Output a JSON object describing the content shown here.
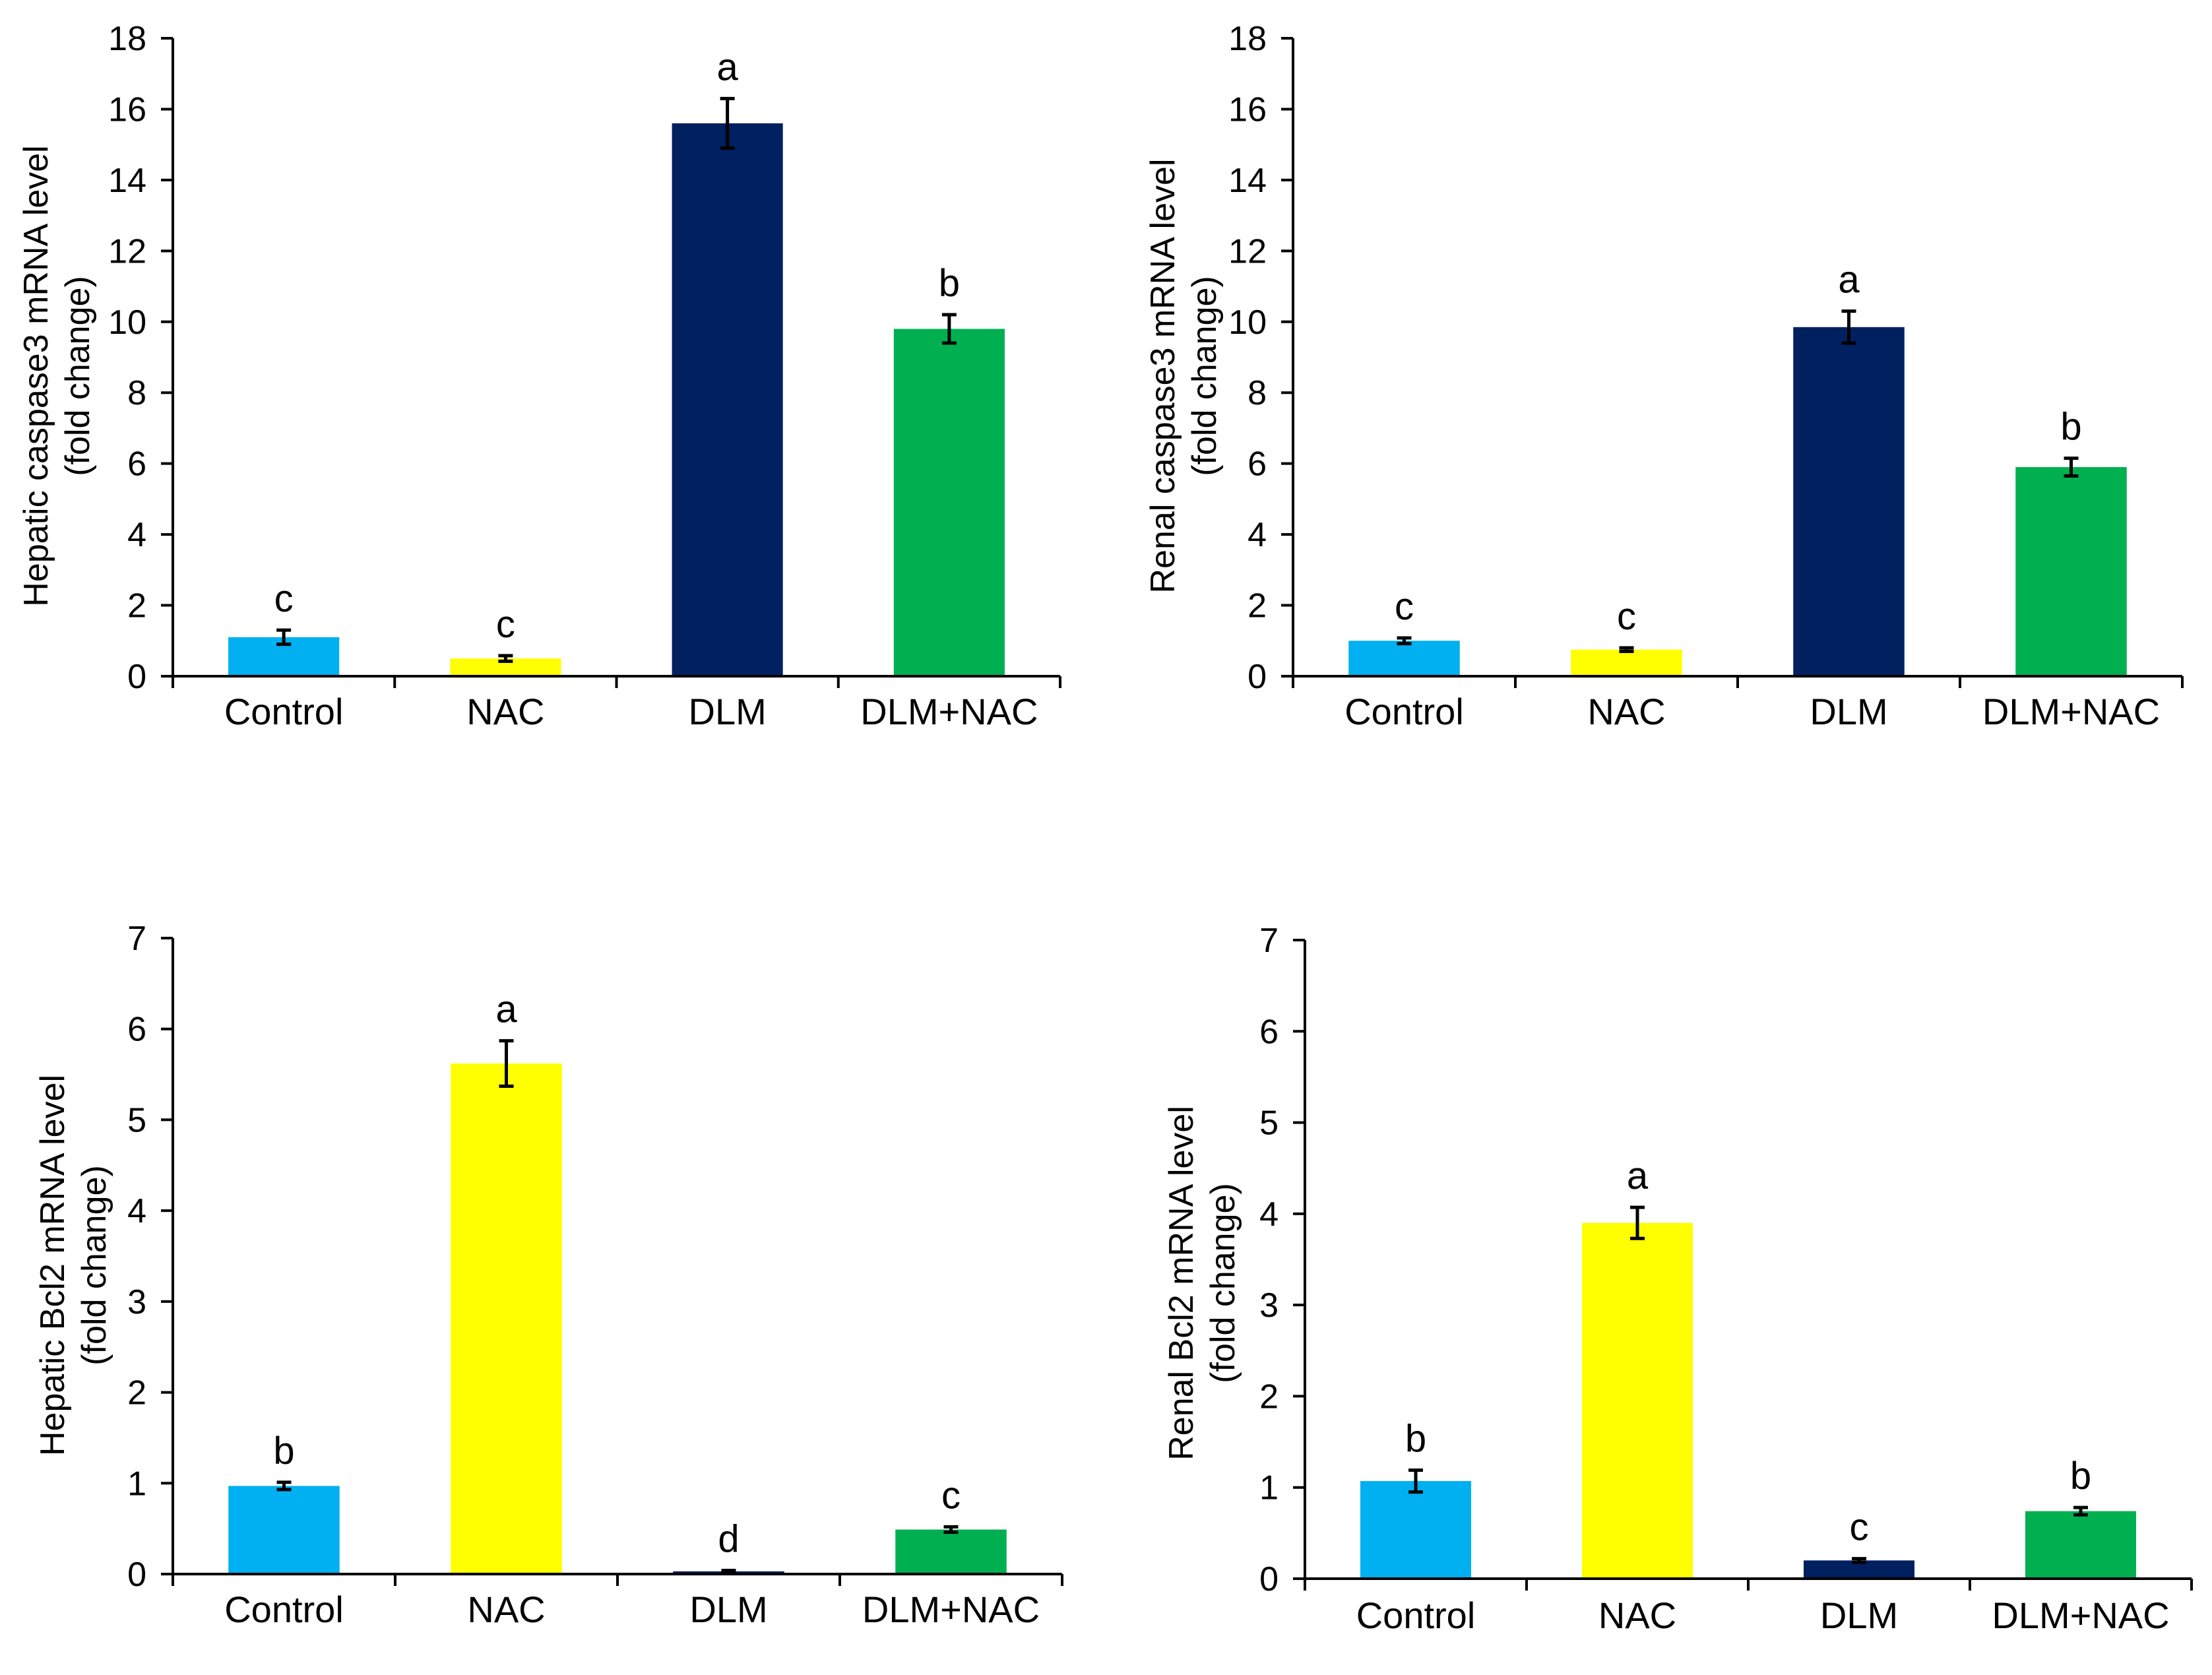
{
  "chart_data": [
    {
      "type": "bar",
      "ylabel": "Hepatic caspase3 mRNA level",
      "ylabel2": "(fold change)",
      "categories": [
        "Control",
        "NAC",
        "DLM",
        "DLM+NAC"
      ],
      "values": [
        1.1,
        0.5,
        15.6,
        9.8
      ],
      "errors": [
        0.2,
        0.08,
        0.7,
        0.4
      ],
      "letters": [
        "c",
        "c",
        "a",
        "b"
      ],
      "colors": [
        "#00b0f0",
        "#ffff00",
        "#002060",
        "#00b050"
      ],
      "ylim": [
        0,
        18
      ],
      "yticks": [
        "0",
        "2",
        "4",
        "6",
        "8",
        "10",
        "12",
        "14",
        "16",
        "18"
      ]
    },
    {
      "type": "bar",
      "ylabel": "Renal caspase3 mRNA level",
      "ylabel2": "(fold change)",
      "categories": [
        "Control",
        "NAC",
        "DLM",
        "DLM+NAC"
      ],
      "values": [
        1.0,
        0.75,
        9.85,
        5.9
      ],
      "errors": [
        0.08,
        0.05,
        0.45,
        0.25
      ],
      "letters": [
        "c",
        "c",
        "a",
        "b"
      ],
      "colors": [
        "#00b0f0",
        "#ffff00",
        "#002060",
        "#00b050"
      ],
      "ylim": [
        0,
        18
      ],
      "yticks": [
        "0",
        "2",
        "4",
        "6",
        "8",
        "10",
        "12",
        "14",
        "16",
        "18"
      ]
    },
    {
      "type": "bar",
      "ylabel": "Hepatic Bcl2 mRNA level",
      "ylabel2": "(fold change)",
      "categories": [
        "Control",
        "NAC",
        "DLM",
        "DLM+NAC"
      ],
      "values": [
        0.97,
        5.62,
        0.03,
        0.49
      ],
      "errors": [
        0.04,
        0.25,
        0.01,
        0.03
      ],
      "letters": [
        "b",
        "a",
        "d",
        "c"
      ],
      "colors": [
        "#00b0f0",
        "#ffff00",
        "#002060",
        "#00b050"
      ],
      "ylim": [
        0,
        7
      ],
      "yticks": [
        "0",
        "1",
        "2",
        "3",
        "4",
        "5",
        "6",
        "7"
      ]
    },
    {
      "type": "bar",
      "ylabel": "Renal Bcl2 mRNA level",
      "ylabel2": "(fold change)",
      "categories": [
        "Control",
        "NAC",
        "DLM",
        "DLM+NAC"
      ],
      "values": [
        1.07,
        3.9,
        0.2,
        0.74
      ],
      "errors": [
        0.12,
        0.17,
        0.02,
        0.04
      ],
      "letters": [
        "b",
        "a",
        "c",
        "b"
      ],
      "colors": [
        "#00b0f0",
        "#ffff00",
        "#002060",
        "#00b050"
      ],
      "ylim": [
        0,
        7
      ],
      "yticks": [
        "0",
        "1",
        "2",
        "3",
        "4",
        "5",
        "6",
        "7"
      ]
    }
  ]
}
